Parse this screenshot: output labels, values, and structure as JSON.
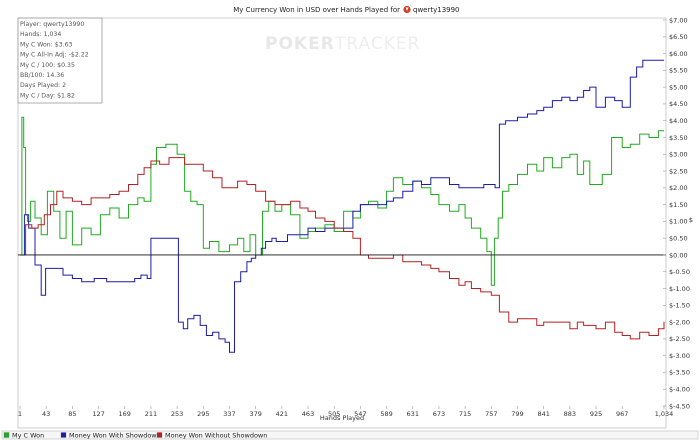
{
  "chart_data": {
    "type": "line",
    "title": "My Currency Won in USD over Hands Played for",
    "player_name": "qwerty13990",
    "xlabel": "Hands Played",
    "ylabel": "$",
    "xlim": [
      1,
      1034
    ],
    "ylim": [
      -4.5,
      7.0
    ],
    "x_ticks": [
      1,
      43,
      85,
      127,
      169,
      211,
      253,
      295,
      337,
      379,
      421,
      463,
      505,
      547,
      589,
      631,
      673,
      715,
      757,
      799,
      841,
      883,
      925,
      967,
      1034
    ],
    "x_tick_labels": [
      "1",
      "43",
      "85",
      "127",
      "169",
      "211",
      "253",
      "295",
      "337",
      "379",
      "421",
      "463",
      "505",
      "547",
      "589",
      "631",
      "673",
      "715",
      "757",
      "799",
      "841",
      "883",
      "925",
      "967",
      "1,034"
    ],
    "y_ticks": [
      7.0,
      6.5,
      6.0,
      5.5,
      5.0,
      4.5,
      4.0,
      3.5,
      3.0,
      2.5,
      2.0,
      1.5,
      1.0,
      0.5,
      0.0,
      -0.5,
      -1.0,
      -1.5,
      -2.0,
      -2.5,
      -3.0,
      -3.5,
      -4.0,
      -4.5
    ],
    "y_tick_labels": [
      "$7.00",
      "$6.50",
      "$6.00",
      "$5.50",
      "$5.00",
      "$4.50",
      "$4.00",
      "$3.50",
      "$3.00",
      "$2.50",
      "$2.00",
      "$1.50",
      "$1.00",
      "$0.50",
      "$0.00",
      "$-0.50",
      "$-1.00",
      "$-1.50",
      "$-2.00",
      "$-2.50",
      "$-3.00",
      "$-3.50",
      "$-4.00",
      "$-4.50"
    ],
    "grid": false,
    "legend_position": "bottom",
    "series": [
      {
        "name": "My C Won",
        "color": "#22aa22",
        "x": [
          1,
          4,
          7,
          10,
          13,
          18,
          25,
          35,
          45,
          55,
          65,
          75,
          85,
          100,
          115,
          130,
          145,
          160,
          175,
          190,
          200,
          211,
          220,
          235,
          253,
          265,
          275,
          285,
          295,
          305,
          320,
          337,
          350,
          360,
          370,
          379,
          390,
          400,
          410,
          421,
          435,
          450,
          463,
          475,
          490,
          505,
          520,
          535,
          547,
          560,
          575,
          589,
          600,
          615,
          631,
          645,
          660,
          673,
          690,
          705,
          715,
          725,
          740,
          750,
          757,
          762,
          768,
          775,
          785,
          799,
          815,
          830,
          841,
          855,
          870,
          883,
          895,
          905,
          915,
          925,
          935,
          950,
          967,
          980,
          995,
          1010,
          1025,
          1034
        ],
        "y": [
          0.0,
          4.1,
          3.2,
          1.2,
          1.0,
          1.6,
          1.1,
          0.6,
          1.9,
          1.3,
          0.5,
          1.3,
          0.3,
          0.8,
          0.6,
          1.2,
          1.4,
          1.1,
          1.5,
          1.7,
          1.6,
          2.7,
          3.2,
          3.3,
          3.0,
          1.9,
          1.6,
          1.5,
          0.2,
          0.4,
          0.1,
          0.3,
          0.5,
          0.1,
          0.6,
          0.0,
          1.3,
          1.6,
          1.3,
          1.5,
          1.2,
          0.5,
          0.7,
          0.8,
          0.9,
          0.7,
          1.3,
          1.1,
          1.5,
          1.6,
          1.4,
          1.9,
          2.3,
          2.1,
          2.2,
          2.0,
          1.8,
          1.5,
          1.3,
          1.5,
          1.1,
          0.8,
          0.5,
          0.1,
          -0.9,
          0.5,
          1.1,
          1.9,
          2.1,
          2.4,
          2.7,
          2.5,
          2.9,
          2.6,
          2.9,
          3.0,
          2.4,
          2.8,
          2.1,
          2.1,
          2.4,
          3.5,
          3.2,
          3.3,
          3.6,
          3.5,
          3.7,
          3.7
        ]
      },
      {
        "name": "Money Won With Showdown",
        "color": "#1c1ca8",
        "x": [
          1,
          8,
          15,
          25,
          35,
          42,
          55,
          70,
          85,
          100,
          120,
          140,
          160,
          175,
          185,
          195,
          205,
          211,
          220,
          235,
          245,
          255,
          263,
          270,
          280,
          290,
          300,
          310,
          320,
          330,
          337,
          345,
          355,
          365,
          372,
          379,
          388,
          395,
          405,
          412,
          421,
          430,
          440,
          455,
          463,
          475,
          490,
          505,
          520,
          535,
          547,
          560,
          575,
          589,
          600,
          615,
          631,
          645,
          660,
          673,
          690,
          705,
          715,
          730,
          745,
          757,
          763,
          770,
          780,
          799,
          815,
          830,
          841,
          855,
          870,
          883,
          895,
          905,
          915,
          925,
          940,
          955,
          967,
          980,
          990,
          1000,
          1015,
          1025,
          1034
        ],
        "y": [
          0.0,
          1.2,
          0.8,
          -0.3,
          -1.2,
          -0.4,
          -0.4,
          -0.6,
          -0.7,
          -0.8,
          -0.7,
          -0.8,
          -0.8,
          -0.8,
          -0.7,
          -0.6,
          -0.7,
          0.5,
          0.5,
          0.5,
          0.5,
          -2.0,
          -2.2,
          -1.9,
          -1.8,
          -2.1,
          -2.4,
          -2.3,
          -2.5,
          -2.6,
          -2.9,
          -0.8,
          -0.5,
          -0.2,
          -0.1,
          0.0,
          0.2,
          0.4,
          0.5,
          0.4,
          0.4,
          0.6,
          0.6,
          0.6,
          0.8,
          0.7,
          0.8,
          0.8,
          0.8,
          1.3,
          1.5,
          1.5,
          1.5,
          1.6,
          1.7,
          1.9,
          2.2,
          2.1,
          2.3,
          2.3,
          2.1,
          2.0,
          2.0,
          2.0,
          2.1,
          2.1,
          2.0,
          3.9,
          4.0,
          4.1,
          4.2,
          4.3,
          4.4,
          4.6,
          4.7,
          4.6,
          4.7,
          4.9,
          5.0,
          4.4,
          4.7,
          4.6,
          4.4,
          5.3,
          5.6,
          5.8,
          5.8,
          5.8,
          5.8
        ]
      },
      {
        "name": "Money Won Without Showdown",
        "color": "#b22222",
        "x": [
          1,
          10,
          20,
          30,
          40,
          50,
          60,
          70,
          85,
          100,
          115,
          130,
          145,
          160,
          175,
          190,
          200,
          211,
          225,
          240,
          253,
          265,
          280,
          295,
          310,
          325,
          337,
          350,
          365,
          379,
          395,
          410,
          421,
          435,
          450,
          463,
          475,
          490,
          505,
          520,
          535,
          547,
          560,
          575,
          589,
          600,
          615,
          631,
          645,
          660,
          673,
          690,
          705,
          715,
          725,
          740,
          757,
          770,
          785,
          799,
          815,
          830,
          841,
          855,
          870,
          883,
          895,
          905,
          915,
          925,
          940,
          955,
          967,
          980,
          995,
          1010,
          1025,
          1034
        ],
        "y": [
          0.0,
          0.9,
          0.8,
          0.9,
          1.2,
          1.5,
          1.9,
          1.7,
          1.6,
          1.5,
          1.7,
          1.7,
          1.8,
          1.9,
          2.1,
          2.4,
          2.6,
          2.8,
          2.7,
          2.9,
          2.9,
          2.7,
          2.7,
          2.5,
          2.3,
          2.0,
          2.0,
          2.2,
          2.1,
          1.9,
          1.6,
          1.5,
          1.5,
          1.6,
          1.4,
          1.3,
          1.1,
          1.0,
          0.8,
          0.7,
          0.5,
          0.0,
          -0.1,
          -0.1,
          -0.1,
          0.0,
          -0.2,
          -0.2,
          -0.3,
          -0.4,
          -0.5,
          -0.7,
          -0.9,
          -0.8,
          -1.0,
          -1.1,
          -1.2,
          -1.7,
          -2.0,
          -1.9,
          -1.9,
          -2.1,
          -2.0,
          -2.0,
          -2.0,
          -2.2,
          -2.0,
          -2.1,
          -2.1,
          -2.2,
          -2.0,
          -2.3,
          -2.4,
          -2.5,
          -2.3,
          -2.4,
          -2.2,
          -2.0
        ]
      }
    ]
  },
  "stats": [
    "Player: qwerty13990",
    "Hands: 1,034",
    "My C Won: $3.63",
    "My C All-In Adj: -$2.22",
    "My C / 100: $0.35",
    "BB/100: 14.36",
    "Days Played: 2",
    "My C / Day: $1.82"
  ],
  "watermark": {
    "part_a": "POKER",
    "part_b": "TRACKER"
  }
}
